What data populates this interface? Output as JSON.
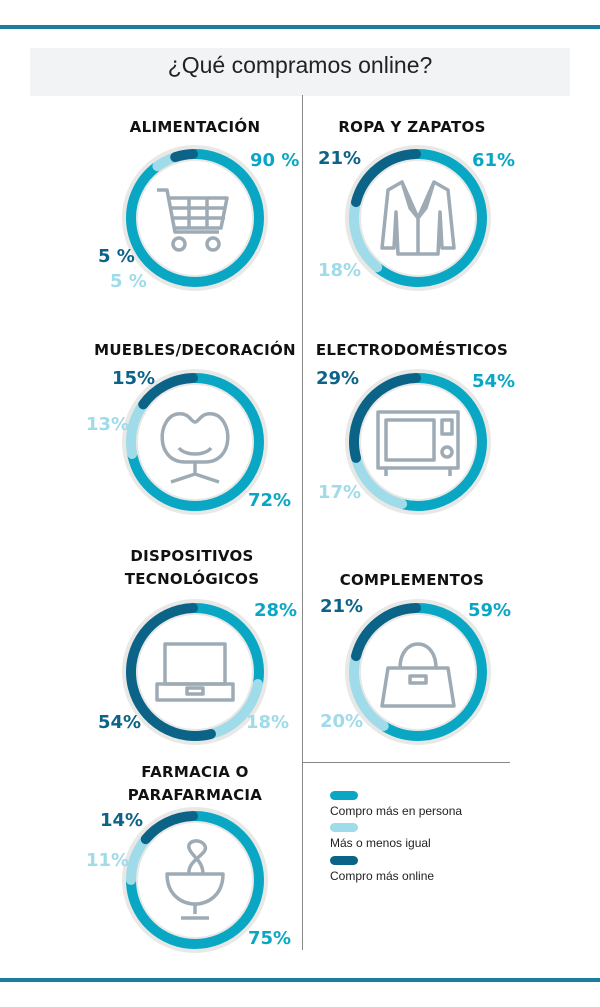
{
  "title": "¿Qué compramos online?",
  "colors": {
    "persona": "#0aa7c5",
    "igual": "#9fdbe8",
    "online": "#0b6387",
    "track": "#e8e8e6",
    "icon": "#9eabb5"
  },
  "legend": [
    {
      "key": "persona",
      "label": "Compro más en persona"
    },
    {
      "key": "igual",
      "label": "Más o menos igual"
    },
    {
      "key": "online",
      "label": "Compro más online"
    }
  ],
  "chart_data": {
    "type": "pie",
    "categories": [
      "Compro más en persona",
      "Más o menos igual",
      "Compro más online"
    ],
    "charts": [
      {
        "title": "ALIMENTACIÓN",
        "icon": "shopping-cart-icon",
        "values": {
          "persona": 90,
          "igual": 5,
          "online": 5
        },
        "labels": {
          "persona": "90 %",
          "igual": "5 %",
          "online": "5 %"
        }
      },
      {
        "title": "ROPA Y ZAPATOS",
        "icon": "jacket-icon",
        "values": {
          "persona": 61,
          "igual": 18,
          "online": 21
        },
        "labels": {
          "persona": "61%",
          "igual": "18%",
          "online": "21%"
        }
      },
      {
        "title": "MUEBLES/DECORACIÓN",
        "icon": "chair-icon",
        "values": {
          "persona": 72,
          "igual": 13,
          "online": 15
        },
        "labels": {
          "persona": "72%",
          "igual": "13%",
          "online": "15%"
        }
      },
      {
        "title": "ELECTRODOMÉSTICOS",
        "icon": "microwave-icon",
        "values": {
          "persona": 54,
          "igual": 17,
          "online": 29
        },
        "labels": {
          "persona": "54%",
          "igual": "17%",
          "online": "29%"
        }
      },
      {
        "title": "DISPOSITIVOS TECNOLÓGICOS",
        "title_lines": [
          "DISPOSITIVOS",
          "TECNOLÓGICOS"
        ],
        "icon": "laptop-icon",
        "values": {
          "persona": 28,
          "igual": 18,
          "online": 54
        },
        "labels": {
          "persona": "28%",
          "igual": "18%",
          "online": "54%"
        }
      },
      {
        "title": "COMPLEMENTOS",
        "icon": "handbag-icon",
        "values": {
          "persona": 59,
          "igual": 20,
          "online": 21
        },
        "labels": {
          "persona": "59%",
          "igual": "20%",
          "online": "21%"
        }
      },
      {
        "title": "FARMACIA O PARAFARMACIA",
        "title_lines": [
          "FARMACIA O",
          "PARAFARMACIA"
        ],
        "icon": "pharmacy-icon",
        "values": {
          "persona": 75,
          "igual": 11,
          "online": 14
        },
        "labels": {
          "persona": "75%",
          "igual": "11%",
          "online": "14%"
        }
      }
    ]
  }
}
